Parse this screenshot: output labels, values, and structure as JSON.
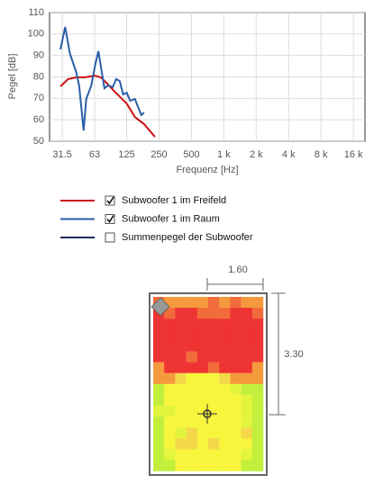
{
  "chart_data": {
    "type": "line",
    "y_label": "Pegel [dB]",
    "x_label": "Frequenz [Hz]",
    "log_x": true,
    "grid": true,
    "xlim": [
      24,
      20500
    ],
    "ylim": [
      50,
      110
    ],
    "xticks": [
      31.5,
      63,
      125,
      250,
      500,
      {
        "value": 1000,
        "label": "1 k"
      },
      {
        "value": 2000,
        "label": "2 k"
      },
      {
        "value": 4000,
        "label": "4 k"
      },
      {
        "value": 8000,
        "label": "8 k"
      },
      {
        "value": 16000,
        "label": "16 k"
      }
    ],
    "yticks": [
      50,
      60,
      70,
      80,
      90,
      100,
      110
    ],
    "series": [
      {
        "name": "Subwoofer 1 im Freifeld",
        "color": "#cc1111",
        "checked": true,
        "x": [
          30.3,
          35.7,
          42.4,
          51.1,
          63,
          72.2,
          80.9,
          97.3,
          125,
          149,
          181,
          229
        ],
        "values": [
          75.6,
          79,
          79.8,
          79.8,
          80.6,
          79.8,
          77.3,
          73,
          67.6,
          61.3,
          58,
          52
        ]
      },
      {
        "name": "Subwoofer 1 im Raum",
        "color": "#2a5ea8",
        "checked": true,
        "x": [
          30.3,
          33.5,
          37.2,
          42.4,
          45.2,
          49.8,
          52.6,
          58.6,
          64.3,
          68.3,
          72.2,
          77.7,
          84,
          92.7,
          99.9,
          107.7,
          116,
          125,
          134.7,
          149,
          161,
          171,
          181
        ],
        "values": [
          92.8,
          103.3,
          90.7,
          82.3,
          76,
          55,
          69.7,
          76,
          86.5,
          92,
          84.4,
          74.7,
          76,
          75.2,
          79,
          78.1,
          71.8,
          72.6,
          68.9,
          69.7,
          65.5,
          62.2,
          63.4
        ]
      },
      {
        "name": "Summenpegel der Subwoofer",
        "color": "#1a2e5a",
        "checked": false,
        "x": [],
        "values": []
      }
    ]
  },
  "room": {
    "width_label": "1.60",
    "length_label": "3.30"
  }
}
